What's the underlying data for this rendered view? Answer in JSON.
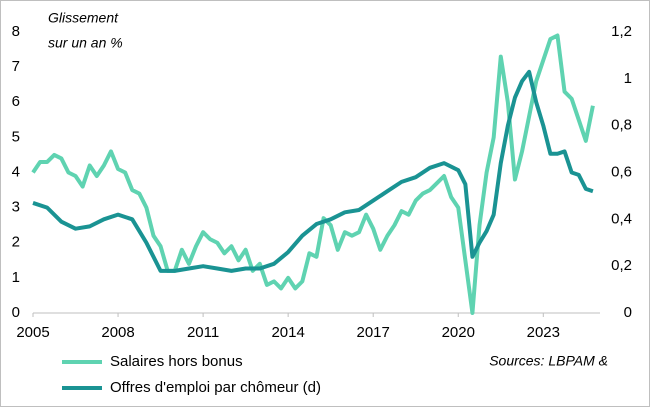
{
  "chart_data": {
    "type": "line",
    "annotations": [
      "Glissement",
      "sur un an %",
      "Sources: LBPAM &"
    ],
    "xlim": [
      2005,
      2025
    ],
    "xticks": [
      2005,
      2008,
      2011,
      2014,
      2017,
      2020,
      2023
    ],
    "ylim": [
      0,
      8
    ],
    "yticks": [
      0,
      1,
      2,
      3,
      4,
      5,
      6,
      7,
      8
    ],
    "y2lim": [
      0,
      1.2
    ],
    "y2ticks": [
      0,
      {
        "value": 0.2,
        "label": "0,2"
      },
      {
        "value": 0.4,
        "label": "0,4"
      },
      {
        "value": 0.6,
        "label": "0,6"
      },
      {
        "value": 0.8,
        "label": "0,8"
      },
      1,
      {
        "value": 1.2,
        "label": "1,2"
      }
    ],
    "grid": false,
    "series": [
      {
        "name": "Salaires hors bonus",
        "color": "#5fd3b1",
        "x": [
          2005,
          2005.25,
          2005.5,
          2005.75,
          2006,
          2006.25,
          2006.5,
          2006.75,
          2007,
          2007.25,
          2007.5,
          2007.75,
          2008,
          2008.25,
          2008.5,
          2008.75,
          2009,
          2009.25,
          2009.5,
          2009.75,
          2010,
          2010.25,
          2010.5,
          2010.75,
          2011,
          2011.25,
          2011.5,
          2011.75,
          2012,
          2012.25,
          2012.5,
          2012.75,
          2013,
          2013.25,
          2013.5,
          2013.75,
          2014,
          2014.25,
          2014.5,
          2014.75,
          2015,
          2015.25,
          2015.5,
          2015.75,
          2016,
          2016.25,
          2016.5,
          2016.75,
          2017,
          2017.25,
          2017.5,
          2017.75,
          2018,
          2018.25,
          2018.5,
          2018.75,
          2019,
          2019.25,
          2019.5,
          2019.75,
          2020,
          2020.25,
          2020.5,
          2020.75,
          2021,
          2021.25,
          2021.5,
          2021.75,
          2022,
          2022.25,
          2022.5,
          2022.75,
          2023,
          2023.25,
          2023.5,
          2023.75,
          2024,
          2024.25,
          2024.5,
          2024.75
        ],
        "values": [
          4.0,
          4.3,
          4.3,
          4.5,
          4.4,
          4.0,
          3.9,
          3.6,
          4.2,
          3.9,
          4.2,
          4.6,
          4.1,
          4.0,
          3.5,
          3.4,
          3.0,
          2.2,
          1.9,
          1.2,
          1.2,
          1.8,
          1.4,
          1.9,
          2.3,
          2.1,
          2.0,
          1.7,
          1.9,
          1.5,
          1.8,
          1.2,
          1.4,
          0.8,
          0.9,
          0.7,
          1.0,
          0.7,
          0.9,
          1.7,
          1.6,
          2.7,
          2.5,
          1.8,
          2.3,
          2.2,
          2.3,
          2.8,
          2.4,
          1.8,
          2.2,
          2.5,
          2.9,
          2.8,
          3.2,
          3.4,
          3.5,
          3.7,
          3.9,
          3.3,
          3.0,
          1.5,
          0.0,
          2.5,
          4.0,
          5.0,
          7.3,
          6.0,
          3.8,
          4.6,
          5.6,
          6.6,
          7.2,
          7.8,
          7.9,
          6.3,
          6.1,
          5.5,
          4.9,
          5.9
        ]
      },
      {
        "name": "Offres d'emploi par chômeur (d)",
        "color": "#1a9393",
        "axis": "y2",
        "x": [
          2005,
          2005.5,
          2006,
          2006.5,
          2007,
          2007.5,
          2008,
          2008.25,
          2008.5,
          2009,
          2009.5,
          2010,
          2010.5,
          2011,
          2011.5,
          2012,
          2012.5,
          2013,
          2013.5,
          2014,
          2014.5,
          2015,
          2015.5,
          2016,
          2016.5,
          2017,
          2017.5,
          2018,
          2018.5,
          2019,
          2019.5,
          2020,
          2020.25,
          2020.5,
          2020.75,
          2021,
          2021.25,
          2021.5,
          2021.75,
          2022,
          2022.25,
          2022.5,
          2022.75,
          2023,
          2023.25,
          2023.5,
          2023.75,
          2024,
          2024.25,
          2024.5,
          2024.75
        ],
        "values": [
          0.47,
          0.45,
          0.39,
          0.36,
          0.37,
          0.4,
          0.42,
          0.41,
          0.4,
          0.3,
          0.18,
          0.18,
          0.19,
          0.2,
          0.19,
          0.18,
          0.19,
          0.19,
          0.21,
          0.26,
          0.33,
          0.38,
          0.4,
          0.43,
          0.44,
          0.48,
          0.52,
          0.56,
          0.58,
          0.62,
          0.64,
          0.61,
          0.55,
          0.24,
          0.3,
          0.35,
          0.42,
          0.64,
          0.8,
          0.92,
          0.99,
          1.03,
          0.9,
          0.8,
          0.68,
          0.68,
          0.69,
          0.6,
          0.59,
          0.53,
          0.52
        ]
      }
    ]
  }
}
